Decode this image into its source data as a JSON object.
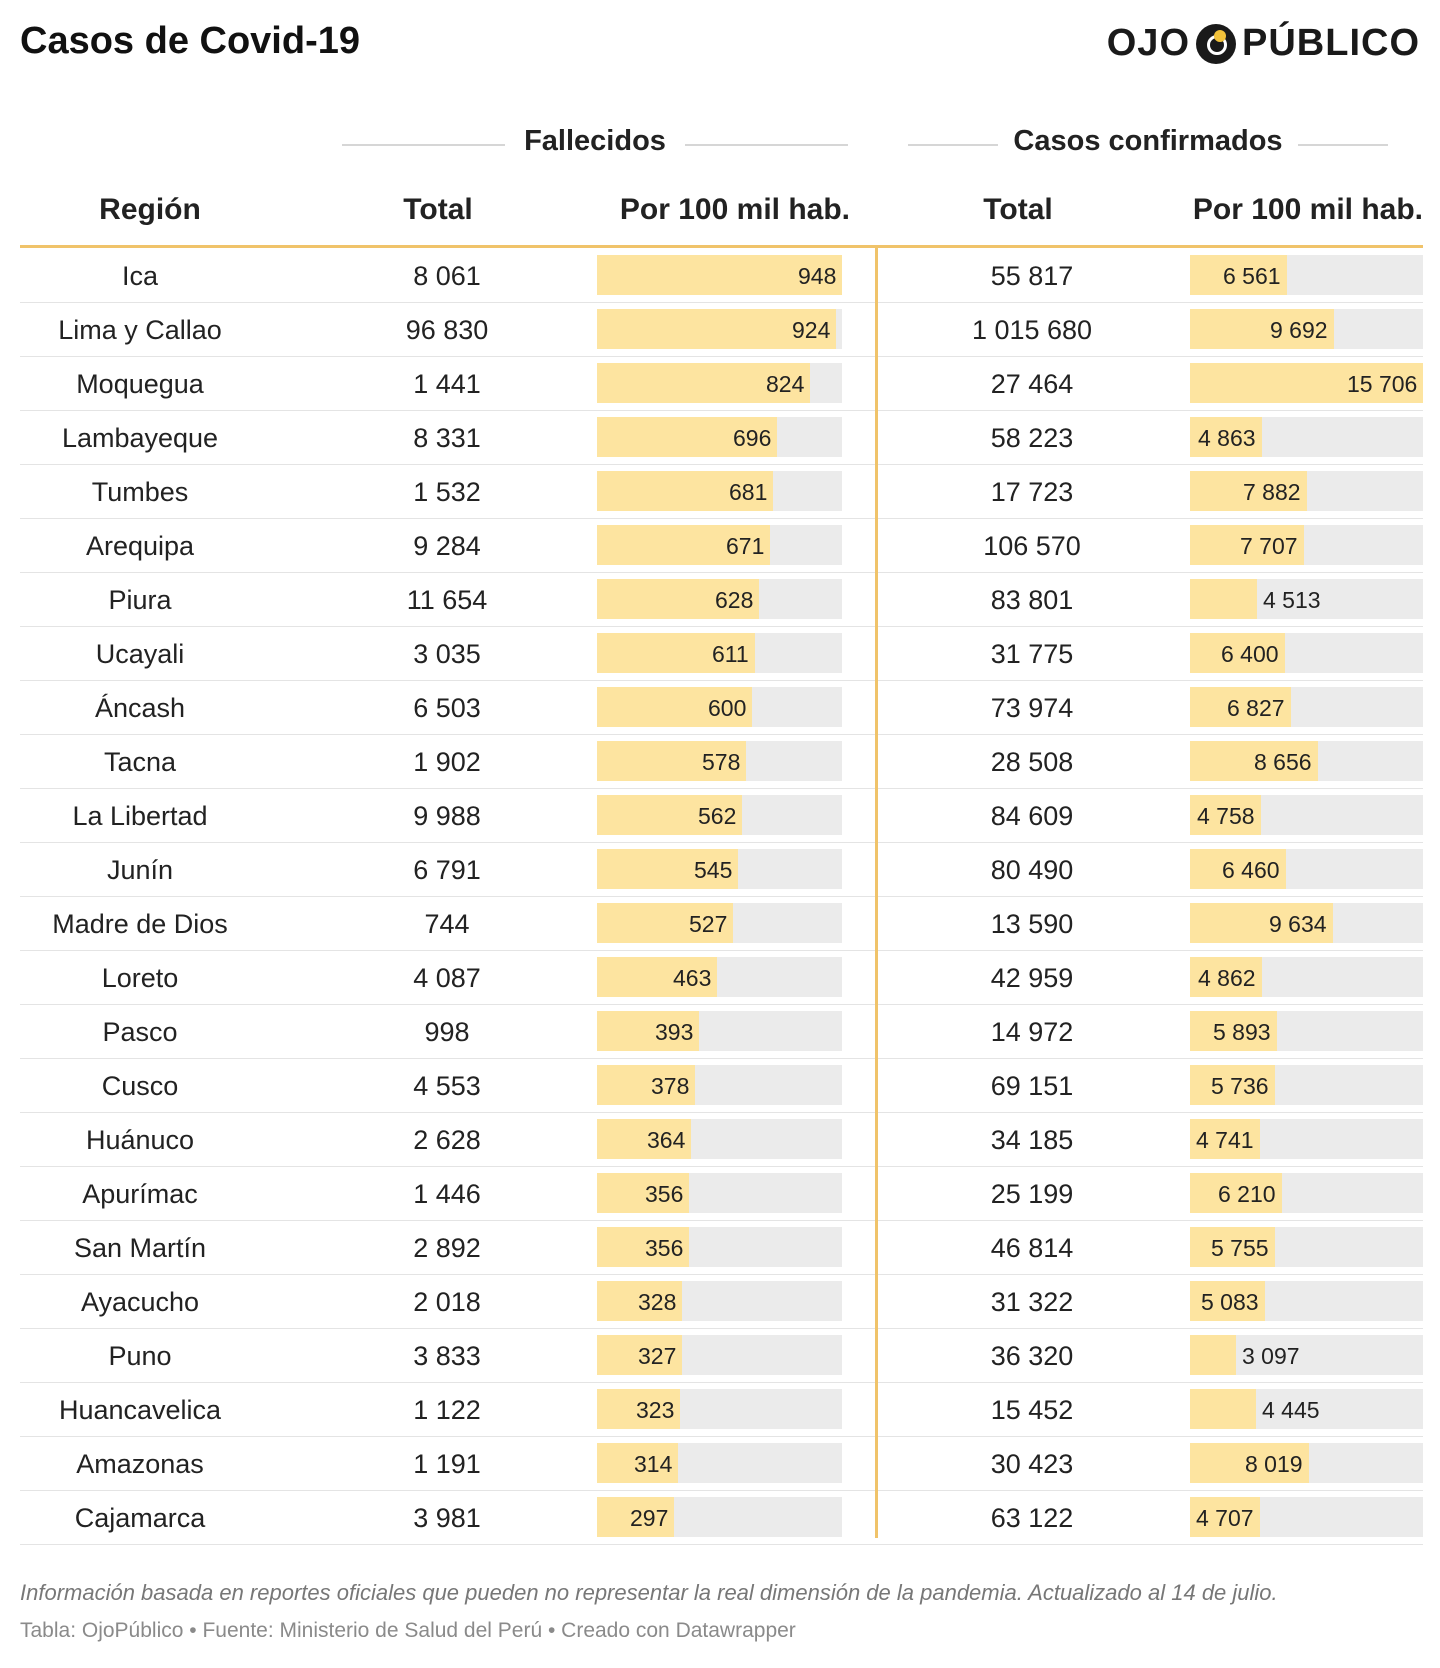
{
  "title": "Casos de Covid-19",
  "logo": {
    "left": "OJO",
    "right": "PÚBLICO"
  },
  "group_headers": {
    "fallecidos": "Fallecidos",
    "casos": "Casos confirmados"
  },
  "column_headers": {
    "region": "Región",
    "fallecidos_total": "Total",
    "fallecidos_per100k": "Por 100 mil hab.",
    "casos_total": "Total",
    "casos_per100k": "Por 100 mil hab."
  },
  "colors": {
    "bar_fill": "#fde4a0",
    "bar_bg": "#ebebeb",
    "accent": "#f0c36a"
  },
  "chart_data": {
    "type": "table",
    "columns": [
      "Región",
      "Fallecidos Total",
      "Fallecidos Por 100 mil hab.",
      "Casos confirmados Total",
      "Casos confirmados Por 100 mil hab."
    ],
    "bar_max": {
      "fallecidos_per100k": 948,
      "casos_per100k": 15706
    },
    "rows": [
      {
        "region": "Ica",
        "f_total": "8 061",
        "f_rate": 948,
        "f_rate_label": "948",
        "c_total": "55 817",
        "c_rate": 6561,
        "c_rate_label": "6 561"
      },
      {
        "region": "Lima y Callao",
        "f_total": "96 830",
        "f_rate": 924,
        "f_rate_label": "924",
        "c_total": "1 015 680",
        "c_rate": 9692,
        "c_rate_label": "9 692"
      },
      {
        "region": "Moquegua",
        "f_total": "1 441",
        "f_rate": 824,
        "f_rate_label": "824",
        "c_total": "27 464",
        "c_rate": 15706,
        "c_rate_label": "15 706"
      },
      {
        "region": "Lambayeque",
        "f_total": "8 331",
        "f_rate": 696,
        "f_rate_label": "696",
        "c_total": "58 223",
        "c_rate": 4863,
        "c_rate_label": "4 863"
      },
      {
        "region": "Tumbes",
        "f_total": "1 532",
        "f_rate": 681,
        "f_rate_label": "681",
        "c_total": "17 723",
        "c_rate": 7882,
        "c_rate_label": "7 882"
      },
      {
        "region": "Arequipa",
        "f_total": "9 284",
        "f_rate": 671,
        "f_rate_label": "671",
        "c_total": "106 570",
        "c_rate": 7707,
        "c_rate_label": "7 707"
      },
      {
        "region": "Piura",
        "f_total": "11 654",
        "f_rate": 628,
        "f_rate_label": "628",
        "c_total": "83 801",
        "c_rate": 4513,
        "c_rate_label": "4 513"
      },
      {
        "region": "Ucayali",
        "f_total": "3 035",
        "f_rate": 611,
        "f_rate_label": "611",
        "c_total": "31 775",
        "c_rate": 6400,
        "c_rate_label": "6 400"
      },
      {
        "region": "Áncash",
        "f_total": "6 503",
        "f_rate": 600,
        "f_rate_label": "600",
        "c_total": "73 974",
        "c_rate": 6827,
        "c_rate_label": "6 827"
      },
      {
        "region": "Tacna",
        "f_total": "1 902",
        "f_rate": 578,
        "f_rate_label": "578",
        "c_total": "28 508",
        "c_rate": 8656,
        "c_rate_label": "8 656"
      },
      {
        "region": "La Libertad",
        "f_total": "9 988",
        "f_rate": 562,
        "f_rate_label": "562",
        "c_total": "84 609",
        "c_rate": 4758,
        "c_rate_label": "4 758"
      },
      {
        "region": "Junín",
        "f_total": "6 791",
        "f_rate": 545,
        "f_rate_label": "545",
        "c_total": "80 490",
        "c_rate": 6460,
        "c_rate_label": "6 460"
      },
      {
        "region": "Madre de Dios",
        "f_total": "744",
        "f_rate": 527,
        "f_rate_label": "527",
        "c_total": "13 590",
        "c_rate": 9634,
        "c_rate_label": "9 634"
      },
      {
        "region": "Loreto",
        "f_total": "4 087",
        "f_rate": 463,
        "f_rate_label": "463",
        "c_total": "42 959",
        "c_rate": 4862,
        "c_rate_label": "4 862"
      },
      {
        "region": "Pasco",
        "f_total": "998",
        "f_rate": 393,
        "f_rate_label": "393",
        "c_total": "14 972",
        "c_rate": 5893,
        "c_rate_label": "5 893"
      },
      {
        "region": "Cusco",
        "f_total": "4 553",
        "f_rate": 378,
        "f_rate_label": "378",
        "c_total": "69 151",
        "c_rate": 5736,
        "c_rate_label": "5 736"
      },
      {
        "region": "Huánuco",
        "f_total": "2 628",
        "f_rate": 364,
        "f_rate_label": "364",
        "c_total": "34 185",
        "c_rate": 4741,
        "c_rate_label": "4 741"
      },
      {
        "region": "Apurímac",
        "f_total": "1 446",
        "f_rate": 356,
        "f_rate_label": "356",
        "c_total": "25 199",
        "c_rate": 6210,
        "c_rate_label": "6 210"
      },
      {
        "region": "San Martín",
        "f_total": "2 892",
        "f_rate": 356,
        "f_rate_label": "356",
        "c_total": "46 814",
        "c_rate": 5755,
        "c_rate_label": "5 755"
      },
      {
        "region": "Ayacucho",
        "f_total": "2 018",
        "f_rate": 328,
        "f_rate_label": "328",
        "c_total": "31 322",
        "c_rate": 5083,
        "c_rate_label": "5 083"
      },
      {
        "region": "Puno",
        "f_total": "3 833",
        "f_rate": 327,
        "f_rate_label": "327",
        "c_total": "36 320",
        "c_rate": 3097,
        "c_rate_label": "3 097"
      },
      {
        "region": "Huancavelica",
        "f_total": "1 122",
        "f_rate": 323,
        "f_rate_label": "323",
        "c_total": "15 452",
        "c_rate": 4445,
        "c_rate_label": "4 445"
      },
      {
        "region": "Amazonas",
        "f_total": "1 191",
        "f_rate": 314,
        "f_rate_label": "314",
        "c_total": "30 423",
        "c_rate": 8019,
        "c_rate_label": "8 019"
      },
      {
        "region": "Cajamarca",
        "f_total": "3 981",
        "f_rate": 297,
        "f_rate_label": "297",
        "c_total": "63 122",
        "c_rate": 4707,
        "c_rate_label": "4 707"
      }
    ]
  },
  "footer": {
    "note": "Información basada en reportes oficiales que pueden no representar la real dimensión de la pandemia. Actualizado al 14 de julio.",
    "source": "Tabla: OjoPúblico • Fuente: Ministerio de Salud del Perú • Creado con Datawrapper"
  }
}
